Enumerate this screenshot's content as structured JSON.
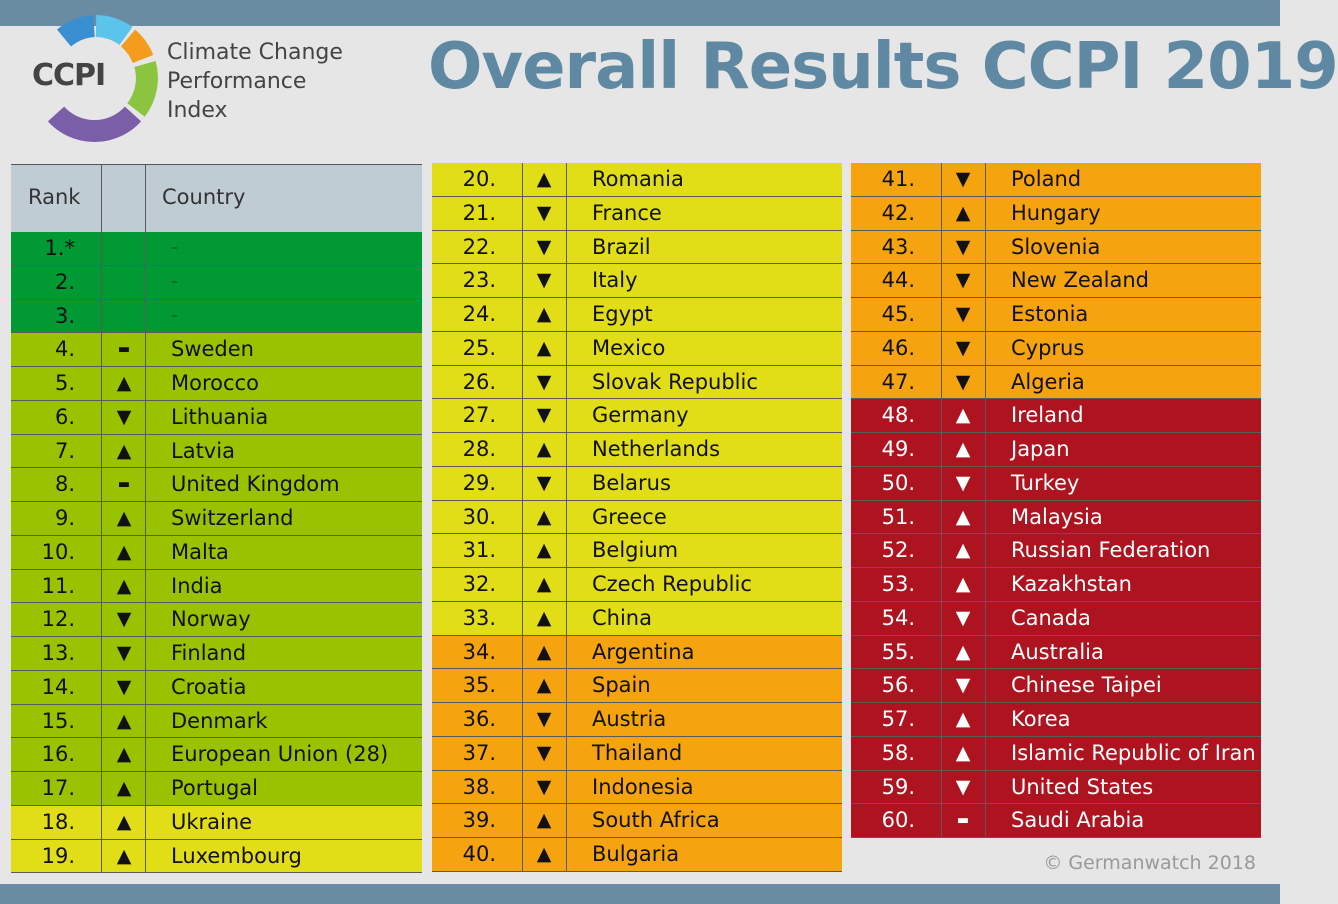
{
  "header": {
    "logo_abbr": "CCPI",
    "logo_lines": [
      "Climate Change",
      "Performance",
      "Index"
    ],
    "title": "Overall Results CCPI 2019"
  },
  "table_header": {
    "rank": "Rank",
    "trend": "",
    "country": "Country"
  },
  "colors": {
    "very_high": "#009933",
    "high": "#99c300",
    "medium": "#e1dd17",
    "low": "#f5a30f",
    "very_low": "#ae1420"
  },
  "columns": [
    [
      {
        "rank": "1.*",
        "trend": "",
        "country": "–",
        "rating": "very_high"
      },
      {
        "rank": "2.",
        "trend": "",
        "country": "–",
        "rating": "very_high"
      },
      {
        "rank": "3.",
        "trend": "",
        "country": "–",
        "rating": "very_high"
      },
      {
        "rank": "4.",
        "trend": "▬",
        "country": "Sweden",
        "rating": "high"
      },
      {
        "rank": "5.",
        "trend": "▲",
        "country": "Morocco",
        "rating": "high"
      },
      {
        "rank": "6.",
        "trend": "▼",
        "country": "Lithuania",
        "rating": "high"
      },
      {
        "rank": "7.",
        "trend": "▲",
        "country": "Latvia",
        "rating": "high"
      },
      {
        "rank": "8.",
        "trend": "▬",
        "country": "United Kingdom",
        "rating": "high"
      },
      {
        "rank": "9.",
        "trend": "▲",
        "country": "Switzerland",
        "rating": "high"
      },
      {
        "rank": "10.",
        "trend": "▲",
        "country": "Malta",
        "rating": "high"
      },
      {
        "rank": "11.",
        "trend": "▲",
        "country": "India",
        "rating": "high"
      },
      {
        "rank": "12.",
        "trend": "▼",
        "country": "Norway",
        "rating": "high"
      },
      {
        "rank": "13.",
        "trend": "▼",
        "country": "Finland",
        "rating": "high"
      },
      {
        "rank": "14.",
        "trend": "▼",
        "country": "Croatia",
        "rating": "high"
      },
      {
        "rank": "15.",
        "trend": "▲",
        "country": "Denmark",
        "rating": "high"
      },
      {
        "rank": "16.",
        "trend": "▲",
        "country": "European Union (28)",
        "rating": "high"
      },
      {
        "rank": "17.",
        "trend": "▲",
        "country": "Portugal",
        "rating": "high"
      },
      {
        "rank": "18.",
        "trend": "▲",
        "country": "Ukraine",
        "rating": "medium"
      },
      {
        "rank": "19.",
        "trend": "▲",
        "country": "Luxembourg",
        "rating": "medium"
      }
    ],
    [
      {
        "rank": "20.",
        "trend": "▲",
        "country": "Romania",
        "rating": "medium"
      },
      {
        "rank": "21.",
        "trend": "▼",
        "country": "France",
        "rating": "medium"
      },
      {
        "rank": "22.",
        "trend": "▼",
        "country": "Brazil",
        "rating": "medium"
      },
      {
        "rank": "23.",
        "trend": "▼",
        "country": "Italy",
        "rating": "medium"
      },
      {
        "rank": "24.",
        "trend": "▲",
        "country": "Egypt",
        "rating": "medium"
      },
      {
        "rank": "25.",
        "trend": "▲",
        "country": "Mexico",
        "rating": "medium"
      },
      {
        "rank": "26.",
        "trend": "▼",
        "country": "Slovak Republic",
        "rating": "medium"
      },
      {
        "rank": "27.",
        "trend": "▼",
        "country": "Germany",
        "rating": "medium"
      },
      {
        "rank": "28.",
        "trend": "▲",
        "country": "Netherlands",
        "rating": "medium"
      },
      {
        "rank": "29.",
        "trend": "▼",
        "country": "Belarus",
        "rating": "medium"
      },
      {
        "rank": "30.",
        "trend": "▲",
        "country": "Greece",
        "rating": "medium"
      },
      {
        "rank": "31.",
        "trend": "▲",
        "country": "Belgium",
        "rating": "medium"
      },
      {
        "rank": "32.",
        "trend": "▲",
        "country": "Czech Republic",
        "rating": "medium"
      },
      {
        "rank": "33.",
        "trend": "▲",
        "country": "China",
        "rating": "medium"
      },
      {
        "rank": "34.",
        "trend": "▲",
        "country": "Argentina",
        "rating": "low"
      },
      {
        "rank": "35.",
        "trend": "▲",
        "country": "Spain",
        "rating": "low"
      },
      {
        "rank": "36.",
        "trend": "▼",
        "country": "Austria",
        "rating": "low"
      },
      {
        "rank": "37.",
        "trend": "▼",
        "country": "Thailand",
        "rating": "low"
      },
      {
        "rank": "38.",
        "trend": "▼",
        "country": "Indonesia",
        "rating": "low"
      },
      {
        "rank": "39.",
        "trend": "▲",
        "country": "South Africa",
        "rating": "low"
      },
      {
        "rank": "40.",
        "trend": "▲",
        "country": "Bulgaria",
        "rating": "low"
      }
    ],
    [
      {
        "rank": "41.",
        "trend": "▼",
        "country": "Poland",
        "rating": "low"
      },
      {
        "rank": "42.",
        "trend": "▲",
        "country": "Hungary",
        "rating": "low"
      },
      {
        "rank": "43.",
        "trend": "▼",
        "country": "Slovenia",
        "rating": "low"
      },
      {
        "rank": "44.",
        "trend": "▼",
        "country": "New Zealand",
        "rating": "low"
      },
      {
        "rank": "45.",
        "trend": "▼",
        "country": "Estonia",
        "rating": "low"
      },
      {
        "rank": "46.",
        "trend": "▼",
        "country": "Cyprus",
        "rating": "low"
      },
      {
        "rank": "47.",
        "trend": "▼",
        "country": "Algeria",
        "rating": "low"
      },
      {
        "rank": "48.",
        "trend": "▲",
        "country": "Ireland",
        "rating": "very_low"
      },
      {
        "rank": "49.",
        "trend": "▲",
        "country": "Japan",
        "rating": "very_low"
      },
      {
        "rank": "50.",
        "trend": "▼",
        "country": "Turkey",
        "rating": "very_low"
      },
      {
        "rank": "51.",
        "trend": "▲",
        "country": "Malaysia",
        "rating": "very_low"
      },
      {
        "rank": "52.",
        "trend": "▲",
        "country": "Russian Federation",
        "rating": "very_low"
      },
      {
        "rank": "53.",
        "trend": "▲",
        "country": "Kazakhstan",
        "rating": "very_low"
      },
      {
        "rank": "54.",
        "trend": "▼",
        "country": "Canada",
        "rating": "very_low"
      },
      {
        "rank": "55.",
        "trend": "▲",
        "country": "Australia",
        "rating": "very_low"
      },
      {
        "rank": "56.",
        "trend": "▼",
        "country": "Chinese Taipei",
        "rating": "very_low"
      },
      {
        "rank": "57.",
        "trend": "▲",
        "country": "Korea",
        "rating": "very_low"
      },
      {
        "rank": "58.",
        "trend": "▲",
        "country": "Islamic Republic of Iran",
        "rating": "very_low"
      },
      {
        "rank": "59.",
        "trend": "▼",
        "country": "United States",
        "rating": "very_low"
      },
      {
        "rank": "60.",
        "trend": "▬",
        "country": "Saudi Arabia",
        "rating": "very_low"
      }
    ]
  ],
  "footer": {
    "copyright": "© Germanwatch 2018"
  }
}
